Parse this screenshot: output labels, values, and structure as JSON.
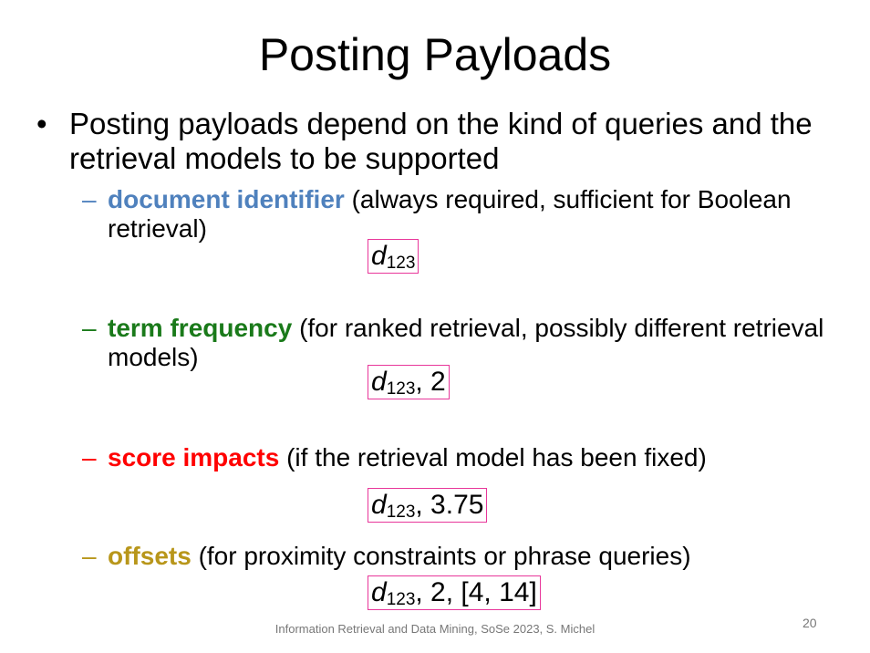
{
  "slide": {
    "title": "Posting Payloads",
    "bullet": {
      "marker": "•",
      "text": "Posting payloads depend on the kind of queries and the retrieval models to be supported"
    },
    "subitems": [
      {
        "dash": "–",
        "keyword": "document identifier",
        "keyword_color": "#4f81bd",
        "rest": " (always required, sufficient for Boolean retrieval)",
        "example": {
          "var": "d",
          "subscript": "123",
          "suffix": ""
        }
      },
      {
        "dash": "–",
        "keyword": "term frequency",
        "keyword_color": "#1a7a1a",
        "rest": " (for ranked retrieval, possibly different retrieval models)",
        "example": {
          "var": "d",
          "subscript": "123",
          "suffix": ", 2"
        }
      },
      {
        "dash": "–",
        "keyword": "score impacts",
        "keyword_color": "#ff0000",
        "rest": " (if the retrieval model has been fixed)",
        "example": {
          "var": "d",
          "subscript": "123",
          "suffix": ", 3.75"
        }
      },
      {
        "dash": "–",
        "keyword": "offsets",
        "keyword_color": "#b8961a",
        "rest": " (for proximity constraints or phrase queries)",
        "example": {
          "var": "d",
          "subscript": "123",
          "suffix": ", 2, [4, 14]"
        }
      }
    ],
    "footer": "Information Retrieval and Data Mining, SoSe 2023, S. Michel",
    "page_number": "20",
    "box_border_color": "#e8379a"
  }
}
